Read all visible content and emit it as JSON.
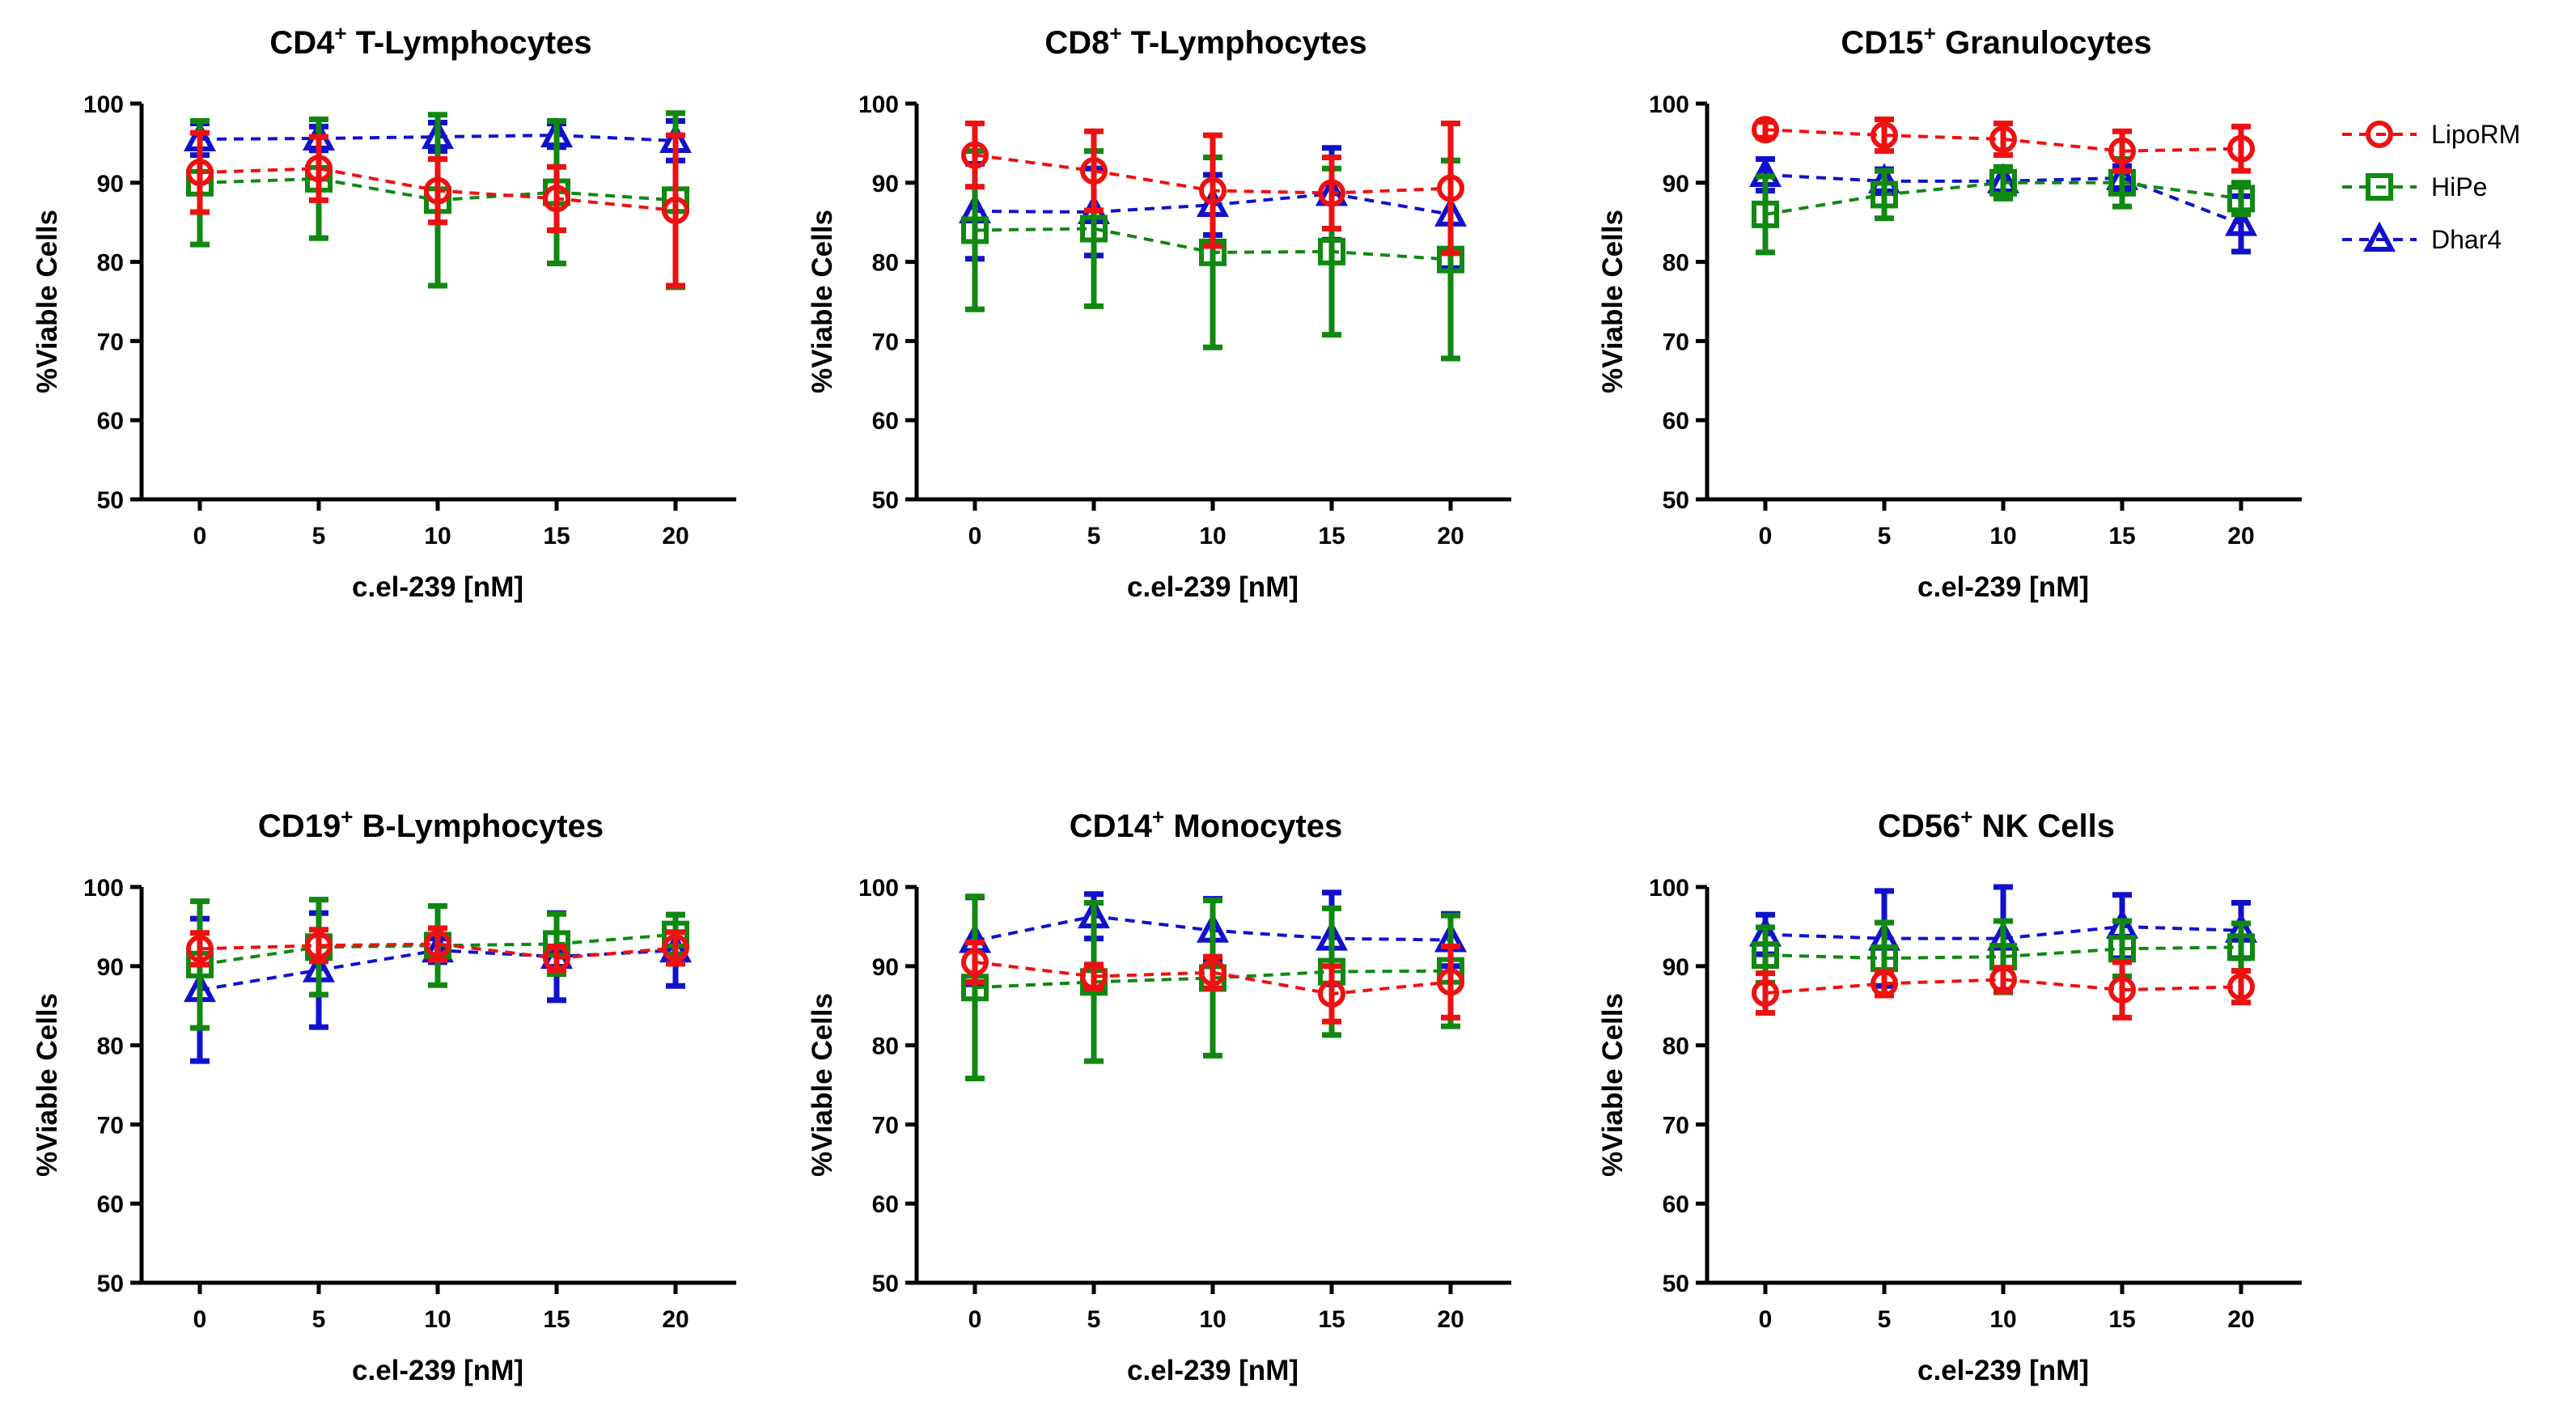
{
  "series_styles": [
    {
      "name": "LipoRM",
      "color": "#ee1111",
      "marker": "circle"
    },
    {
      "name": "HiPe",
      "color": "#118811",
      "marker": "square"
    },
    {
      "name": "Dhar4",
      "color": "#1111cc",
      "marker": "triangle"
    }
  ],
  "legend": {
    "position": "right",
    "entries": [
      "LipoRM",
      "HiPe",
      "Dhar4"
    ]
  },
  "chart_data": [
    {
      "type": "line",
      "title": {
        "prefix": "CD4",
        "sup": "+",
        "suffix": " T-Lymphocytes"
      },
      "xlabel": "c.el-239 [nM]",
      "ylabel": "%Viable Cells",
      "x": [
        0,
        5,
        10,
        15,
        20
      ],
      "xticks": [
        "0",
        "5",
        "10",
        "15",
        "20"
      ],
      "ylim": [
        50,
        100
      ],
      "yticks": [
        "50",
        "60",
        "70",
        "80",
        "90",
        "100"
      ],
      "series": [
        {
          "name": "LipoRM",
          "values": [
            91.3,
            91.8,
            89.0,
            88.0,
            86.5
          ],
          "errors": [
            5.0,
            4.0,
            4.0,
            4.0,
            9.5
          ]
        },
        {
          "name": "HiPe",
          "values": [
            90.0,
            90.5,
            87.8,
            88.8,
            87.8
          ],
          "errors": [
            7.8,
            7.5,
            10.8,
            9.0,
            11.0
          ]
        },
        {
          "name": "Dhar4",
          "values": [
            95.5,
            95.6,
            95.8,
            96.0,
            95.3
          ],
          "errors": [
            2.0,
            1.5,
            1.8,
            1.5,
            2.5
          ]
        }
      ]
    },
    {
      "type": "line",
      "title": {
        "prefix": "CD8",
        "sup": "+",
        "suffix": " T-Lymphocytes"
      },
      "xlabel": "c.el-239 [nM]",
      "ylabel": "%Viable Cells",
      "x": [
        0,
        5,
        10,
        15,
        20
      ],
      "xticks": [
        "0",
        "5",
        "10",
        "15",
        "20"
      ],
      "ylim": [
        50,
        100
      ],
      "yticks": [
        "50",
        "60",
        "70",
        "80",
        "90",
        "100"
      ],
      "series": [
        {
          "name": "LipoRM",
          "values": [
            93.5,
            91.5,
            89.0,
            88.7,
            89.3
          ],
          "errors": [
            4.0,
            5.0,
            7.0,
            4.5,
            8.2
          ]
        },
        {
          "name": "HiPe",
          "values": [
            84.0,
            84.2,
            81.2,
            81.3,
            80.3
          ],
          "errors": [
            10.0,
            9.8,
            12.0,
            10.5,
            12.5
          ]
        },
        {
          "name": "Dhar4",
          "values": [
            86.4,
            86.3,
            87.2,
            88.6,
            86.0
          ],
          "errors": [
            6.0,
            5.5,
            3.8,
            5.8,
            6.8
          ]
        }
      ]
    },
    {
      "type": "line",
      "title": {
        "prefix": "CD15",
        "sup": "+",
        "suffix": " Granulocytes"
      },
      "xlabel": "c.el-239 [nM]",
      "ylabel": "%Viable Cells",
      "x": [
        0,
        5,
        10,
        15,
        20
      ],
      "xticks": [
        "0",
        "5",
        "10",
        "15",
        "20"
      ],
      "ylim": [
        50,
        100
      ],
      "yticks": [
        "50",
        "60",
        "70",
        "80",
        "90",
        "100"
      ],
      "series": [
        {
          "name": "LipoRM",
          "values": [
            96.7,
            96.0,
            95.5,
            94.0,
            94.3
          ],
          "errors": [
            1.0,
            2.0,
            2.0,
            2.5,
            2.8
          ]
        },
        {
          "name": "HiPe",
          "values": [
            86.0,
            88.5,
            90.0,
            90.0,
            88.0
          ],
          "errors": [
            4.8,
            3.0,
            2.0,
            3.0,
            2.0
          ]
        },
        {
          "name": "Dhar4",
          "values": [
            91.0,
            90.2,
            90.2,
            90.6,
            84.8
          ],
          "errors": [
            2.0,
            1.5,
            1.5,
            1.5,
            3.5
          ]
        }
      ]
    },
    {
      "type": "line",
      "title": {
        "prefix": "CD19",
        "sup": "+",
        "suffix": " B-Lymphocytes"
      },
      "xlabel": "c.el-239 [nM]",
      "ylabel": "%Viable Cells",
      "x": [
        0,
        5,
        10,
        15,
        20
      ],
      "xticks": [
        "0",
        "5",
        "10",
        "15",
        "20"
      ],
      "ylim": [
        50,
        100
      ],
      "yticks": [
        "50",
        "60",
        "70",
        "80",
        "90",
        "100"
      ],
      "series": [
        {
          "name": "LipoRM",
          "values": [
            92.2,
            92.6,
            92.8,
            91.0,
            92.3
          ],
          "errors": [
            2.0,
            2.0,
            2.0,
            1.5,
            2.0
          ]
        },
        {
          "name": "HiPe",
          "values": [
            90.2,
            92.4,
            92.6,
            92.8,
            94.0
          ],
          "errors": [
            8.0,
            6.0,
            5.0,
            3.8,
            2.5
          ]
        },
        {
          "name": "Dhar4",
          "values": [
            87.0,
            89.5,
            92.0,
            91.2,
            92.0
          ],
          "errors": [
            9.0,
            7.2,
            1.5,
            5.5,
            4.5
          ]
        }
      ]
    },
    {
      "type": "line",
      "title": {
        "prefix": "CD14",
        "sup": "+",
        "suffix": " Monocytes"
      },
      "xlabel": "c.el-239 [nM]",
      "ylabel": "%Viable Cells",
      "x": [
        0,
        5,
        10,
        15,
        20
      ],
      "xticks": [
        "0",
        "5",
        "10",
        "15",
        "20"
      ],
      "ylim": [
        50,
        100
      ],
      "yticks": [
        "50",
        "60",
        "70",
        "80",
        "90",
        "100"
      ],
      "series": [
        {
          "name": "LipoRM",
          "values": [
            90.5,
            88.7,
            89.2,
            86.5,
            88.0
          ],
          "errors": [
            2.5,
            1.5,
            2.0,
            3.5,
            4.5
          ]
        },
        {
          "name": "HiPe",
          "values": [
            87.3,
            88.0,
            88.5,
            89.3,
            89.4
          ],
          "errors": [
            11.5,
            10.0,
            9.8,
            8.0,
            7.0
          ]
        },
        {
          "name": "Dhar4",
          "values": [
            93.2,
            96.3,
            94.5,
            93.5,
            93.3
          ],
          "errors": [
            5.5,
            2.8,
            4.0,
            5.8,
            3.3
          ]
        }
      ]
    },
    {
      "type": "line",
      "title": {
        "prefix": "CD56",
        "sup": "+",
        "suffix": " NK Cells"
      },
      "xlabel": "c.el-239 [nM]",
      "ylabel": "%Viable Cells",
      "x": [
        0,
        5,
        10,
        15,
        20
      ],
      "xticks": [
        "0",
        "5",
        "10",
        "15",
        "20"
      ],
      "ylim": [
        50,
        100
      ],
      "yticks": [
        "50",
        "60",
        "70",
        "80",
        "90",
        "100"
      ],
      "series": [
        {
          "name": "LipoRM",
          "values": [
            86.6,
            87.8,
            88.3,
            87.0,
            87.4
          ],
          "errors": [
            2.5,
            1.5,
            1.5,
            3.5,
            2.0
          ]
        },
        {
          "name": "HiPe",
          "values": [
            91.4,
            91.0,
            91.2,
            92.2,
            92.4
          ],
          "errors": [
            3.5,
            4.5,
            4.5,
            3.5,
            3.0
          ]
        },
        {
          "name": "Dhar4",
          "values": [
            94.0,
            93.5,
            93.5,
            95.0,
            94.5
          ],
          "errors": [
            2.5,
            6.0,
            6.5,
            4.0,
            3.5
          ]
        }
      ]
    }
  ]
}
